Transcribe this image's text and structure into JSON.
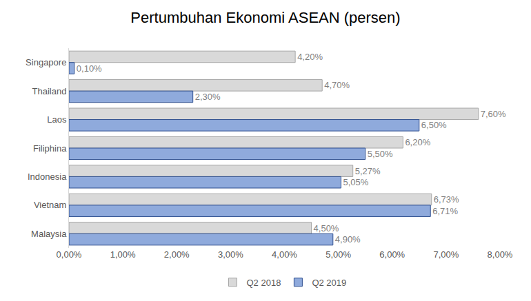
{
  "chart_data": {
    "type": "bar",
    "title": "Pertumbuhan Ekonomi ASEAN (persen)",
    "orientation": "horizontal",
    "categories": [
      "Singapore",
      "Thailand",
      "Laos",
      "Filiphina",
      "Indonesia",
      "Vietnam",
      "Malaysia"
    ],
    "series": [
      {
        "name": "Q2 2018",
        "color": "#d9d9d9",
        "values": [
          4.2,
          4.7,
          7.6,
          6.2,
          5.27,
          6.73,
          4.5
        ],
        "value_labels": [
          "4,20%",
          "4,70%",
          "7,60%",
          "6,20%",
          "5,27%",
          "6,73%",
          "4,50%"
        ]
      },
      {
        "name": "Q2 2019",
        "color": "#8faadc",
        "values": [
          0.1,
          2.3,
          6.5,
          5.5,
          5.05,
          6.71,
          4.9
        ],
        "value_labels": [
          "0,10%",
          "2,30%",
          "6,50%",
          "5,50%",
          "5,05%",
          "6,71%",
          "4,90%"
        ]
      }
    ],
    "xlim": [
      0,
      8
    ],
    "xticks": [
      {
        "value": 0,
        "label": "0,00%"
      },
      {
        "value": 1,
        "label": "1,00%"
      },
      {
        "value": 2,
        "label": "2,00%"
      },
      {
        "value": 3,
        "label": "3,00%"
      },
      {
        "value": 4,
        "label": "4,00%"
      },
      {
        "value": 5,
        "label": "5,00%"
      },
      {
        "value": 6,
        "label": "6,00%"
      },
      {
        "value": 7,
        "label": "7,00%"
      },
      {
        "value": 8,
        "label": "8,00%"
      }
    ],
    "grid": false,
    "legend": "bottom",
    "data_labels": true
  }
}
